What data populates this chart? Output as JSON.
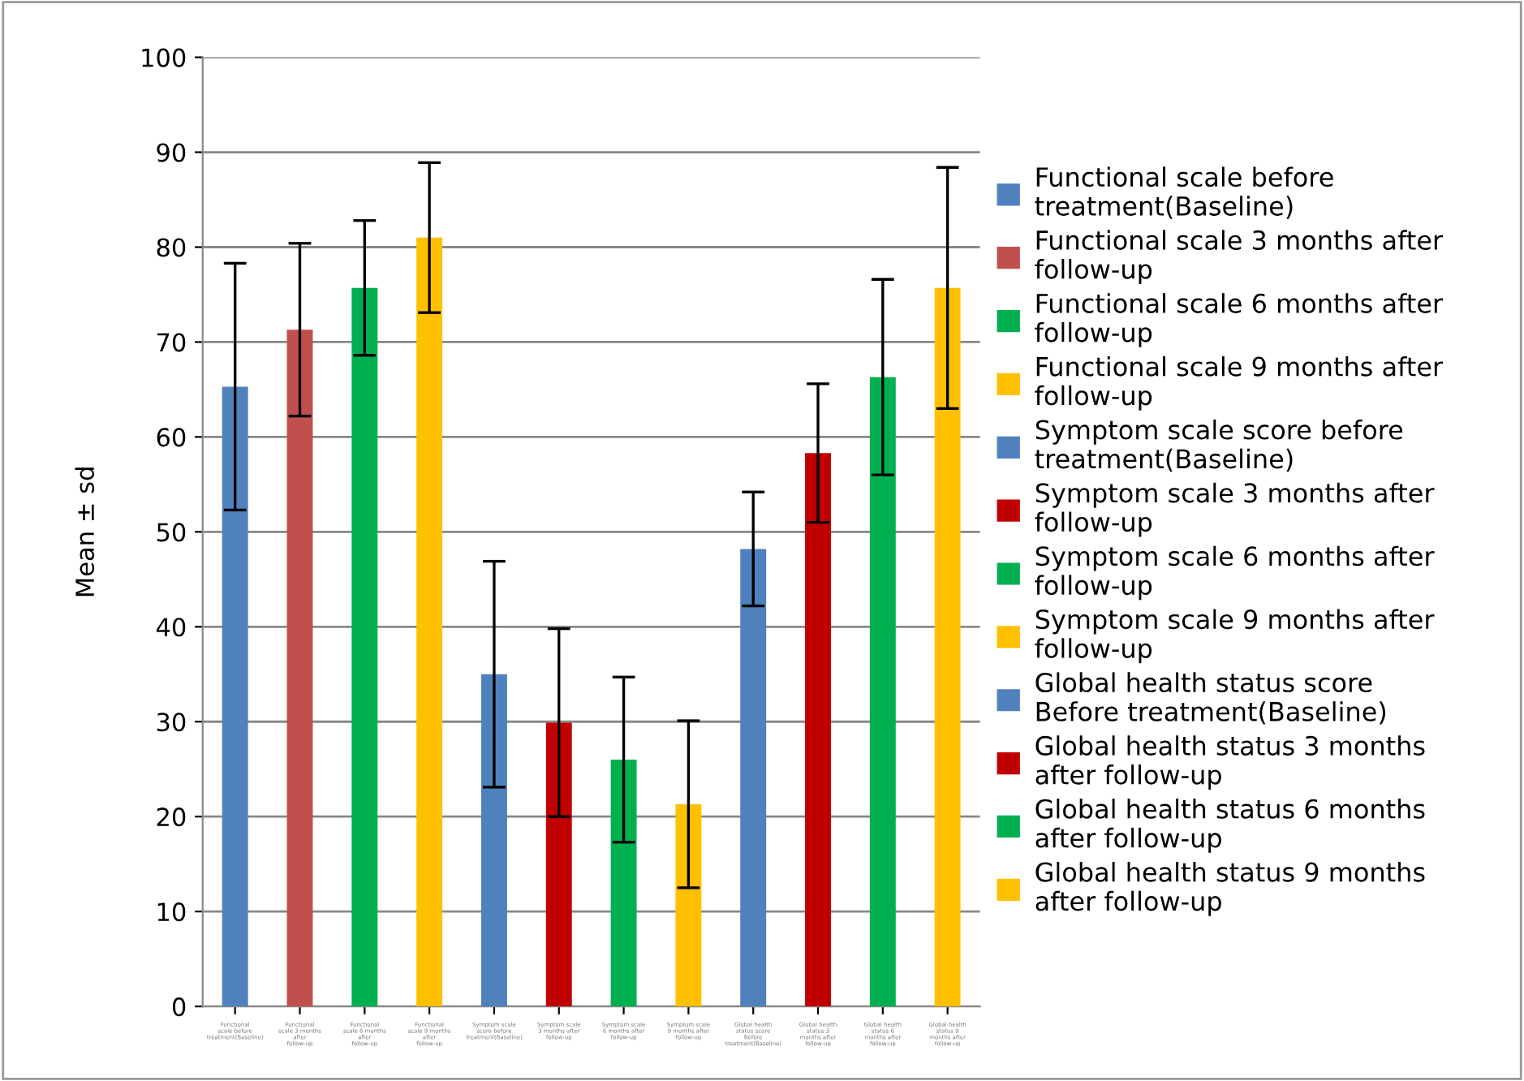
{
  "chart_data": {
    "type": "bar",
    "ylabel": "Mean ± sd",
    "categories": [
      "Functional scale before treatment(Baseline)",
      "Functional scale 3 months after follow-up",
      "Functional scale 6 months after follow-up",
      "Functional scale 9 months after follow-up",
      "Symptom scale score before treatment(Baseline)",
      "Symptom scale 3 months after follow-up",
      "Symptom scale 6 months after follow-up",
      "Symptom scale 9 months after follow-up",
      "Global health status score Before treatment(Baseline)",
      "Global health status 3 months after follow-up",
      "Global health status 6 months after follow-up",
      "Global health status 9 months after follow-up"
    ],
    "series": [
      {
        "name": "Functional scale before treatment(Baseline)",
        "color": "#4f81bd",
        "values": [
          65.3,
          null,
          null,
          null,
          null,
          null,
          null,
          null,
          null,
          null,
          null,
          null
        ],
        "errors": [
          13,
          null,
          null,
          null,
          null,
          null,
          null,
          null,
          null,
          null,
          null,
          null
        ]
      },
      {
        "name": "Functional scale 3 months after follow-up",
        "color": "#c0504d",
        "values": [
          null,
          71.3,
          null,
          null,
          null,
          null,
          null,
          null,
          null,
          null,
          null,
          null
        ],
        "errors": [
          null,
          9.1,
          null,
          null,
          null,
          null,
          null,
          null,
          null,
          null,
          null,
          null
        ]
      },
      {
        "name": "Functional scale 6 months after follow-up",
        "color": "#00b050",
        "values": [
          null,
          null,
          75.7,
          null,
          null,
          null,
          null,
          null,
          null,
          null,
          null,
          null
        ],
        "errors": [
          null,
          null,
          7.1,
          null,
          null,
          null,
          null,
          null,
          null,
          null,
          null,
          null
        ]
      },
      {
        "name": "Functional scale 9 months after follow-up",
        "color": "#ffc000",
        "values": [
          null,
          null,
          null,
          81,
          null,
          null,
          null,
          null,
          null,
          null,
          null,
          null
        ],
        "errors": [
          null,
          null,
          null,
          7.9,
          null,
          null,
          null,
          null,
          null,
          null,
          null,
          null
        ]
      },
      {
        "name": "Symptom scale score before treatment(Baseline)",
        "color": "#4f81bd",
        "values": [
          null,
          null,
          null,
          null,
          35,
          null,
          null,
          null,
          null,
          null,
          null,
          null
        ],
        "errors": [
          null,
          null,
          null,
          null,
          11.9,
          null,
          null,
          null,
          null,
          null,
          null,
          null
        ]
      },
      {
        "name": "Symptom scale 3 months after follow-up",
        "color": "#c00000",
        "values": [
          null,
          null,
          null,
          null,
          null,
          29.9,
          null,
          null,
          null,
          null,
          null,
          null
        ],
        "errors": [
          null,
          null,
          null,
          null,
          null,
          9.9,
          null,
          null,
          null,
          null,
          null,
          null
        ]
      },
      {
        "name": "Symptom scale 6 months after follow-up",
        "color": "#00b050",
        "values": [
          null,
          null,
          null,
          null,
          null,
          null,
          26,
          null,
          null,
          null,
          null,
          null
        ],
        "errors": [
          null,
          null,
          null,
          null,
          null,
          null,
          8.7,
          null,
          null,
          null,
          null,
          null
        ]
      },
      {
        "name": "Symptom scale 9 months after follow-up",
        "color": "#ffc000",
        "values": [
          null,
          null,
          null,
          null,
          null,
          null,
          null,
          21.3,
          null,
          null,
          null,
          null
        ],
        "errors": [
          null,
          null,
          null,
          null,
          null,
          null,
          null,
          8.8,
          null,
          null,
          null,
          null
        ]
      },
      {
        "name": "Global health status score Before treatment(Baseline)",
        "color": "#4f81bd",
        "values": [
          null,
          null,
          null,
          null,
          null,
          null,
          null,
          null,
          48.2,
          null,
          null,
          null
        ],
        "errors": [
          null,
          null,
          null,
          null,
          null,
          null,
          null,
          null,
          6,
          null,
          null,
          null
        ]
      },
      {
        "name": "Global health status 3 months after follow-up",
        "color": "#c00000",
        "values": [
          null,
          null,
          null,
          null,
          null,
          null,
          null,
          null,
          null,
          58.3,
          null,
          null
        ],
        "errors": [
          null,
          null,
          null,
          null,
          null,
          null,
          null,
          null,
          null,
          7.3,
          null,
          null
        ]
      },
      {
        "name": "Global health status 6 months after follow-up",
        "color": "#00b050",
        "values": [
          null,
          null,
          null,
          null,
          null,
          null,
          null,
          null,
          null,
          null,
          66.3,
          null
        ],
        "errors": [
          null,
          null,
          null,
          null,
          null,
          null,
          null,
          null,
          null,
          null,
          10.3,
          null
        ]
      },
      {
        "name": "Global health status 9 months after follow-up",
        "color": "#ffc000",
        "values": [
          null,
          null,
          null,
          null,
          null,
          null,
          null,
          null,
          null,
          null,
          null,
          75.7
        ],
        "errors": [
          null,
          null,
          null,
          null,
          null,
          null,
          null,
          null,
          null,
          null,
          null,
          12.7
        ]
      }
    ],
    "ylim": [
      0,
      100
    ],
    "yticks": [
      0,
      10,
      20,
      30,
      40,
      50,
      60,
      70,
      80,
      90,
      100
    ],
    "grid": "y",
    "legend": "right"
  }
}
